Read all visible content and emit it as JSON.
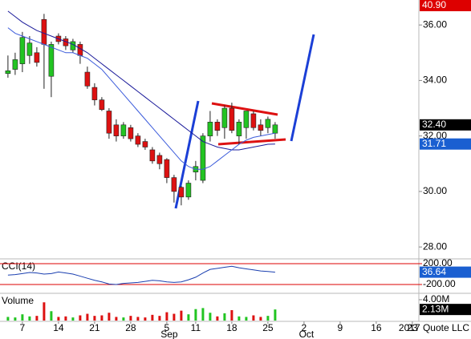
{
  "chart_data": [
    {
      "type": "candlestick",
      "ylim": [
        27.6,
        36.9
      ],
      "yticks": [
        {
          "value": 28,
          "label": "28.00"
        },
        {
          "value": 30,
          "label": "30.00"
        },
        {
          "value": 32,
          "label": "32.00"
        },
        {
          "value": 34,
          "label": "34.00"
        },
        {
          "value": 36,
          "label": "36.00"
        }
      ],
      "up_color": "#22c422",
      "down_color": "#dd1111",
      "open": [
        34.25,
        34.4,
        34.6,
        34.9,
        35.0,
        36.2,
        34.15,
        35.6,
        35.5,
        35.1,
        35.3,
        34.3,
        33.75,
        33.3,
        32.9,
        32.4,
        32.0,
        32.3,
        32.0,
        31.8,
        31.5,
        31.3,
        31.15,
        30.5,
        30.15,
        29.8,
        30.7,
        30.4,
        32.0,
        32.5,
        32.3,
        33.0,
        32.0,
        32.3,
        32.8,
        32.4,
        32.3,
        32.1
      ],
      "high": [
        34.9,
        35.0,
        35.75,
        35.6,
        35.2,
        36.4,
        35.4,
        35.7,
        35.6,
        35.5,
        35.4,
        34.5,
        33.9,
        33.4,
        33.0,
        32.6,
        32.5,
        32.4,
        32.1,
        31.9,
        31.6,
        31.4,
        31.2,
        30.6,
        30.2,
        30.4,
        31.1,
        32.1,
        32.9,
        32.6,
        33.1,
        33.2,
        32.6,
        32.9,
        32.9,
        32.6,
        32.7,
        32.5
      ],
      "low": [
        34.1,
        34.2,
        34.3,
        34.6,
        34.5,
        33.7,
        33.4,
        35.3,
        35.1,
        35.0,
        34.6,
        33.7,
        33.1,
        32.9,
        31.9,
        31.8,
        31.9,
        31.8,
        31.6,
        31.5,
        31.0,
        30.8,
        30.3,
        29.6,
        29.5,
        29.7,
        30.4,
        30.3,
        31.8,
        32.0,
        31.9,
        32.1,
        31.7,
        31.9,
        32.2,
        32.0,
        32.1,
        31.9
      ],
      "close": [
        34.35,
        34.75,
        35.55,
        35.35,
        34.65,
        35.3,
        35.3,
        35.4,
        35.25,
        35.4,
        34.9,
        33.8,
        33.3,
        32.95,
        32.1,
        32.0,
        32.4,
        31.9,
        31.7,
        31.6,
        31.1,
        31.0,
        30.5,
        30.0,
        29.8,
        30.3,
        30.9,
        32.0,
        32.5,
        32.2,
        33.0,
        32.2,
        32.5,
        32.9,
        32.3,
        32.2,
        32.6,
        32.4
      ],
      "lines": [
        {
          "color": "#1a1a9a",
          "values": [
            36.5,
            36.3,
            36.1,
            35.95,
            35.8,
            35.7,
            35.6,
            35.5,
            35.4,
            35.3,
            35.15,
            35.0,
            34.8,
            34.6,
            34.4,
            34.2,
            34.0,
            33.8,
            33.6,
            33.4,
            33.2,
            33.0,
            32.8,
            32.6,
            32.4,
            32.2,
            32.0,
            31.8,
            31.7,
            31.6,
            31.55,
            31.5,
            31.5,
            31.55,
            31.6,
            31.65,
            31.7,
            31.71
          ]
        },
        {
          "color": "#3b5bdb",
          "values": [
            35.9,
            35.7,
            35.6,
            35.5,
            35.4,
            35.3,
            35.2,
            35.1,
            35.0,
            35.0,
            34.9,
            34.8,
            34.6,
            34.4,
            34.1,
            33.8,
            33.5,
            33.2,
            32.9,
            32.6,
            32.3,
            32.0,
            31.7,
            31.4,
            31.1,
            30.9,
            30.8,
            30.8,
            30.9,
            31.1,
            31.3,
            31.5,
            31.7,
            31.85,
            31.95,
            32.0,
            32.05,
            32.1
          ]
        }
      ],
      "flags": [
        {
          "value": 40.9,
          "label": "40.90",
          "color": "#dd0000"
        },
        {
          "value": 32.4,
          "label": "32.40",
          "color": "#000000"
        },
        {
          "value": 31.71,
          "label": "31.71",
          "color": "#1a5fd1"
        }
      ]
    },
    {
      "type": "line",
      "title": "CCI(14)",
      "color": "#1a3fb0",
      "grid_color": "#dd0000",
      "ylim": [
        -354,
        261
      ],
      "yticks": [
        {
          "value": 200,
          "label": "200.00"
        },
        {
          "value": -200,
          "label": "-200.00"
        }
      ],
      "values": [
        -20,
        -10,
        10,
        30,
        20,
        0,
        10,
        40,
        20,
        0,
        -40,
        -80,
        -120,
        -150,
        -190,
        -200,
        -180,
        -170,
        -160,
        -140,
        -120,
        -130,
        -150,
        -160,
        -150,
        -110,
        -60,
        20,
        90,
        110,
        130,
        150,
        120,
        100,
        80,
        60,
        50,
        36.64
      ],
      "flags": [
        {
          "value": 36.64,
          "label": "36.64",
          "color": "#1a5fd1"
        }
      ]
    },
    {
      "type": "bar",
      "title": "Volume",
      "ylim": [
        0,
        4920000
      ],
      "yticks": [
        {
          "value": 4000000,
          "label": "4.00M"
        }
      ],
      "values": [
        700000,
        600000,
        1200000,
        800000,
        900000,
        3500000,
        1800000,
        700000,
        800000,
        600000,
        1000000,
        1300000,
        900000,
        1000000,
        1500000,
        700000,
        600000,
        900000,
        700000,
        600000,
        1100000,
        900000,
        1600000,
        1300000,
        1900000,
        1200000,
        2200000,
        2400000,
        1500000,
        800000,
        1400000,
        2000000,
        800000,
        700000,
        1000000,
        700000,
        900000,
        2130000
      ],
      "flags": [
        {
          "value": 2130000,
          "label": "2.13M",
          "color": "#000000"
        }
      ],
      "xlim": [
        -1.1,
        56.9
      ],
      "xticks": [
        {
          "value": 2,
          "label": "7"
        },
        {
          "value": 7,
          "label": "14"
        },
        {
          "value": 12,
          "label": "21"
        },
        {
          "value": 17,
          "label": "28"
        },
        {
          "value": 22,
          "label": "5"
        },
        {
          "value": 26,
          "label": "11"
        },
        {
          "value": 31,
          "label": "18"
        },
        {
          "value": 36,
          "label": "25"
        },
        {
          "value": 41,
          "label": "2"
        },
        {
          "value": 46,
          "label": "9"
        },
        {
          "value": 51,
          "label": "16"
        },
        {
          "value": 56,
          "label": "23"
        }
      ],
      "month_labels": [
        {
          "value": 22,
          "label": "Sep"
        },
        {
          "value": 41,
          "label": "Oct"
        }
      ],
      "footer": "2017 Quote LLC"
    }
  ]
}
